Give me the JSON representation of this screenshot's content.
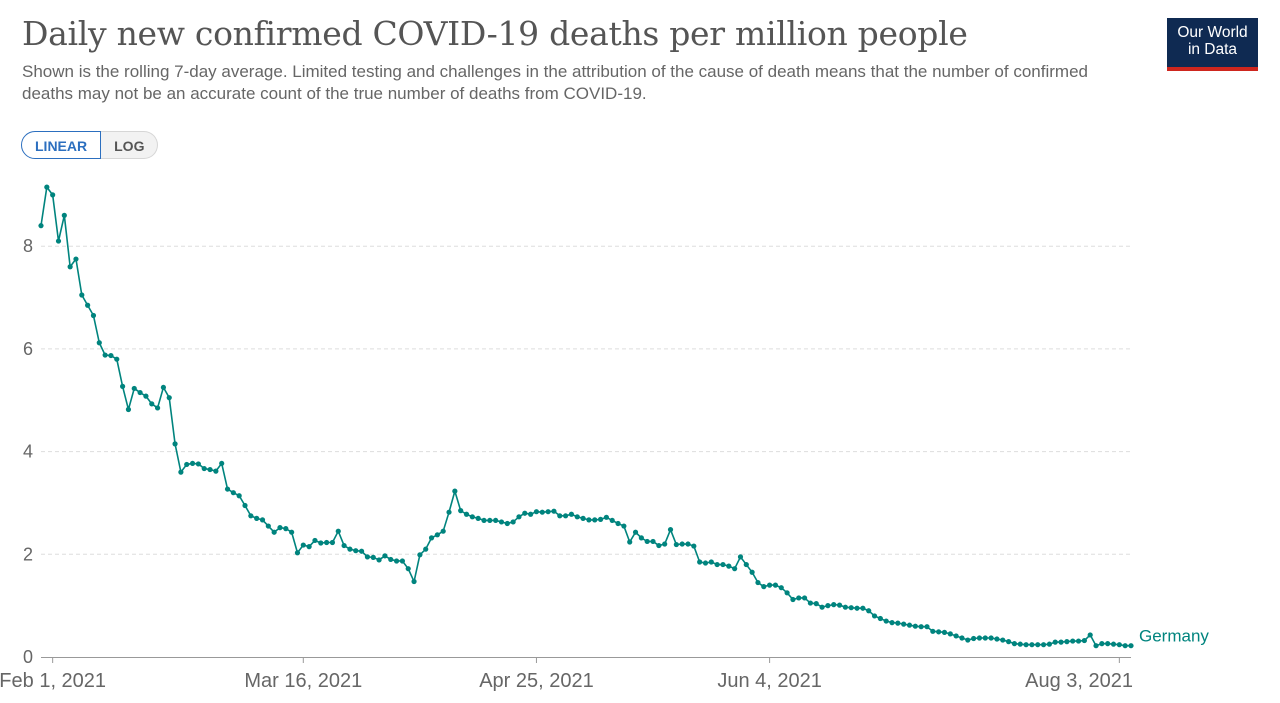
{
  "header": {
    "title": "Daily new confirmed COVID-19 deaths per million people",
    "subtitle": "Shown is the rolling 7-day average. Limited testing and challenges in the attribution of the cause of death means that the number of confirmed deaths may not be an accurate count of the true number of deaths from COVID-19.",
    "logo_line1": "Our World",
    "logo_line2": "in Data"
  },
  "controls": {
    "linear_label": "LINEAR",
    "log_label": "LOG",
    "selected": "LINEAR"
  },
  "colors": {
    "series": "#00847e",
    "grid": "#dddddd",
    "axis": "#999999",
    "logo_bg": "#0f2a52",
    "logo_accent": "#ce261e"
  },
  "chart_data": {
    "type": "line",
    "title": "Daily new confirmed COVID-19 deaths per million people",
    "xlabel": "",
    "ylabel": "",
    "ylim": [
      0,
      9.2
    ],
    "yticks": [
      0,
      2,
      4,
      6,
      8
    ],
    "grid": true,
    "x_start": "Jan 30, 2021",
    "x_end": "Aug 3, 2021",
    "xticks": [
      {
        "day": 2,
        "label": "Feb 1, 2021"
      },
      {
        "day": 45,
        "label": "Mar 16, 2021"
      },
      {
        "day": 85,
        "label": "Apr 25, 2021"
      },
      {
        "day": 125,
        "label": "Jun 4, 2021"
      },
      {
        "day": 185,
        "label": "Aug 3, 2021"
      }
    ],
    "series": [
      {
        "name": "Germany",
        "values": [
          8.4,
          9.15,
          9.0,
          8.1,
          8.6,
          7.6,
          7.75,
          7.05,
          6.85,
          6.65,
          6.12,
          5.88,
          5.87,
          5.8,
          5.27,
          4.82,
          5.23,
          5.15,
          5.08,
          4.93,
          4.85,
          5.25,
          5.05,
          4.15,
          3.6,
          3.75,
          3.77,
          3.76,
          3.67,
          3.65,
          3.62,
          3.77,
          3.27,
          3.2,
          3.14,
          2.95,
          2.75,
          2.7,
          2.67,
          2.55,
          2.43,
          2.52,
          2.5,
          2.43,
          2.03,
          2.18,
          2.15,
          2.27,
          2.22,
          2.23,
          2.23,
          2.45,
          2.17,
          2.1,
          2.07,
          2.06,
          1.95,
          1.94,
          1.89,
          1.97,
          1.9,
          1.87,
          1.87,
          1.72,
          1.47,
          1.99,
          2.1,
          2.32,
          2.38,
          2.45,
          2.82,
          3.23,
          2.85,
          2.78,
          2.73,
          2.7,
          2.66,
          2.66,
          2.66,
          2.63,
          2.6,
          2.63,
          2.73,
          2.8,
          2.78,
          2.83,
          2.82,
          2.83,
          2.84,
          2.75,
          2.75,
          2.78,
          2.73,
          2.7,
          2.67,
          2.67,
          2.68,
          2.72,
          2.66,
          2.6,
          2.55,
          2.24,
          2.43,
          2.32,
          2.25,
          2.25,
          2.17,
          2.2,
          2.48,
          2.19,
          2.2,
          2.2,
          2.16,
          1.85,
          1.83,
          1.85,
          1.8,
          1.8,
          1.77,
          1.72,
          1.95,
          1.8,
          1.65,
          1.45,
          1.37,
          1.4,
          1.4,
          1.35,
          1.25,
          1.12,
          1.15,
          1.15,
          1.05,
          1.04,
          0.97,
          1.0,
          1.02,
          1.01,
          0.97,
          0.96,
          0.95,
          0.95,
          0.9,
          0.8,
          0.75,
          0.7,
          0.67,
          0.66,
          0.64,
          0.62,
          0.6,
          0.59,
          0.59,
          0.5,
          0.49,
          0.48,
          0.45,
          0.41,
          0.37,
          0.33,
          0.36,
          0.37,
          0.37,
          0.37,
          0.35,
          0.33,
          0.3,
          0.26,
          0.25,
          0.24,
          0.24,
          0.24,
          0.24,
          0.25,
          0.29,
          0.29,
          0.3,
          0.31,
          0.31,
          0.32,
          0.43,
          0.22,
          0.26,
          0.26,
          0.25,
          0.24,
          0.22,
          0.22
        ]
      }
    ]
  }
}
